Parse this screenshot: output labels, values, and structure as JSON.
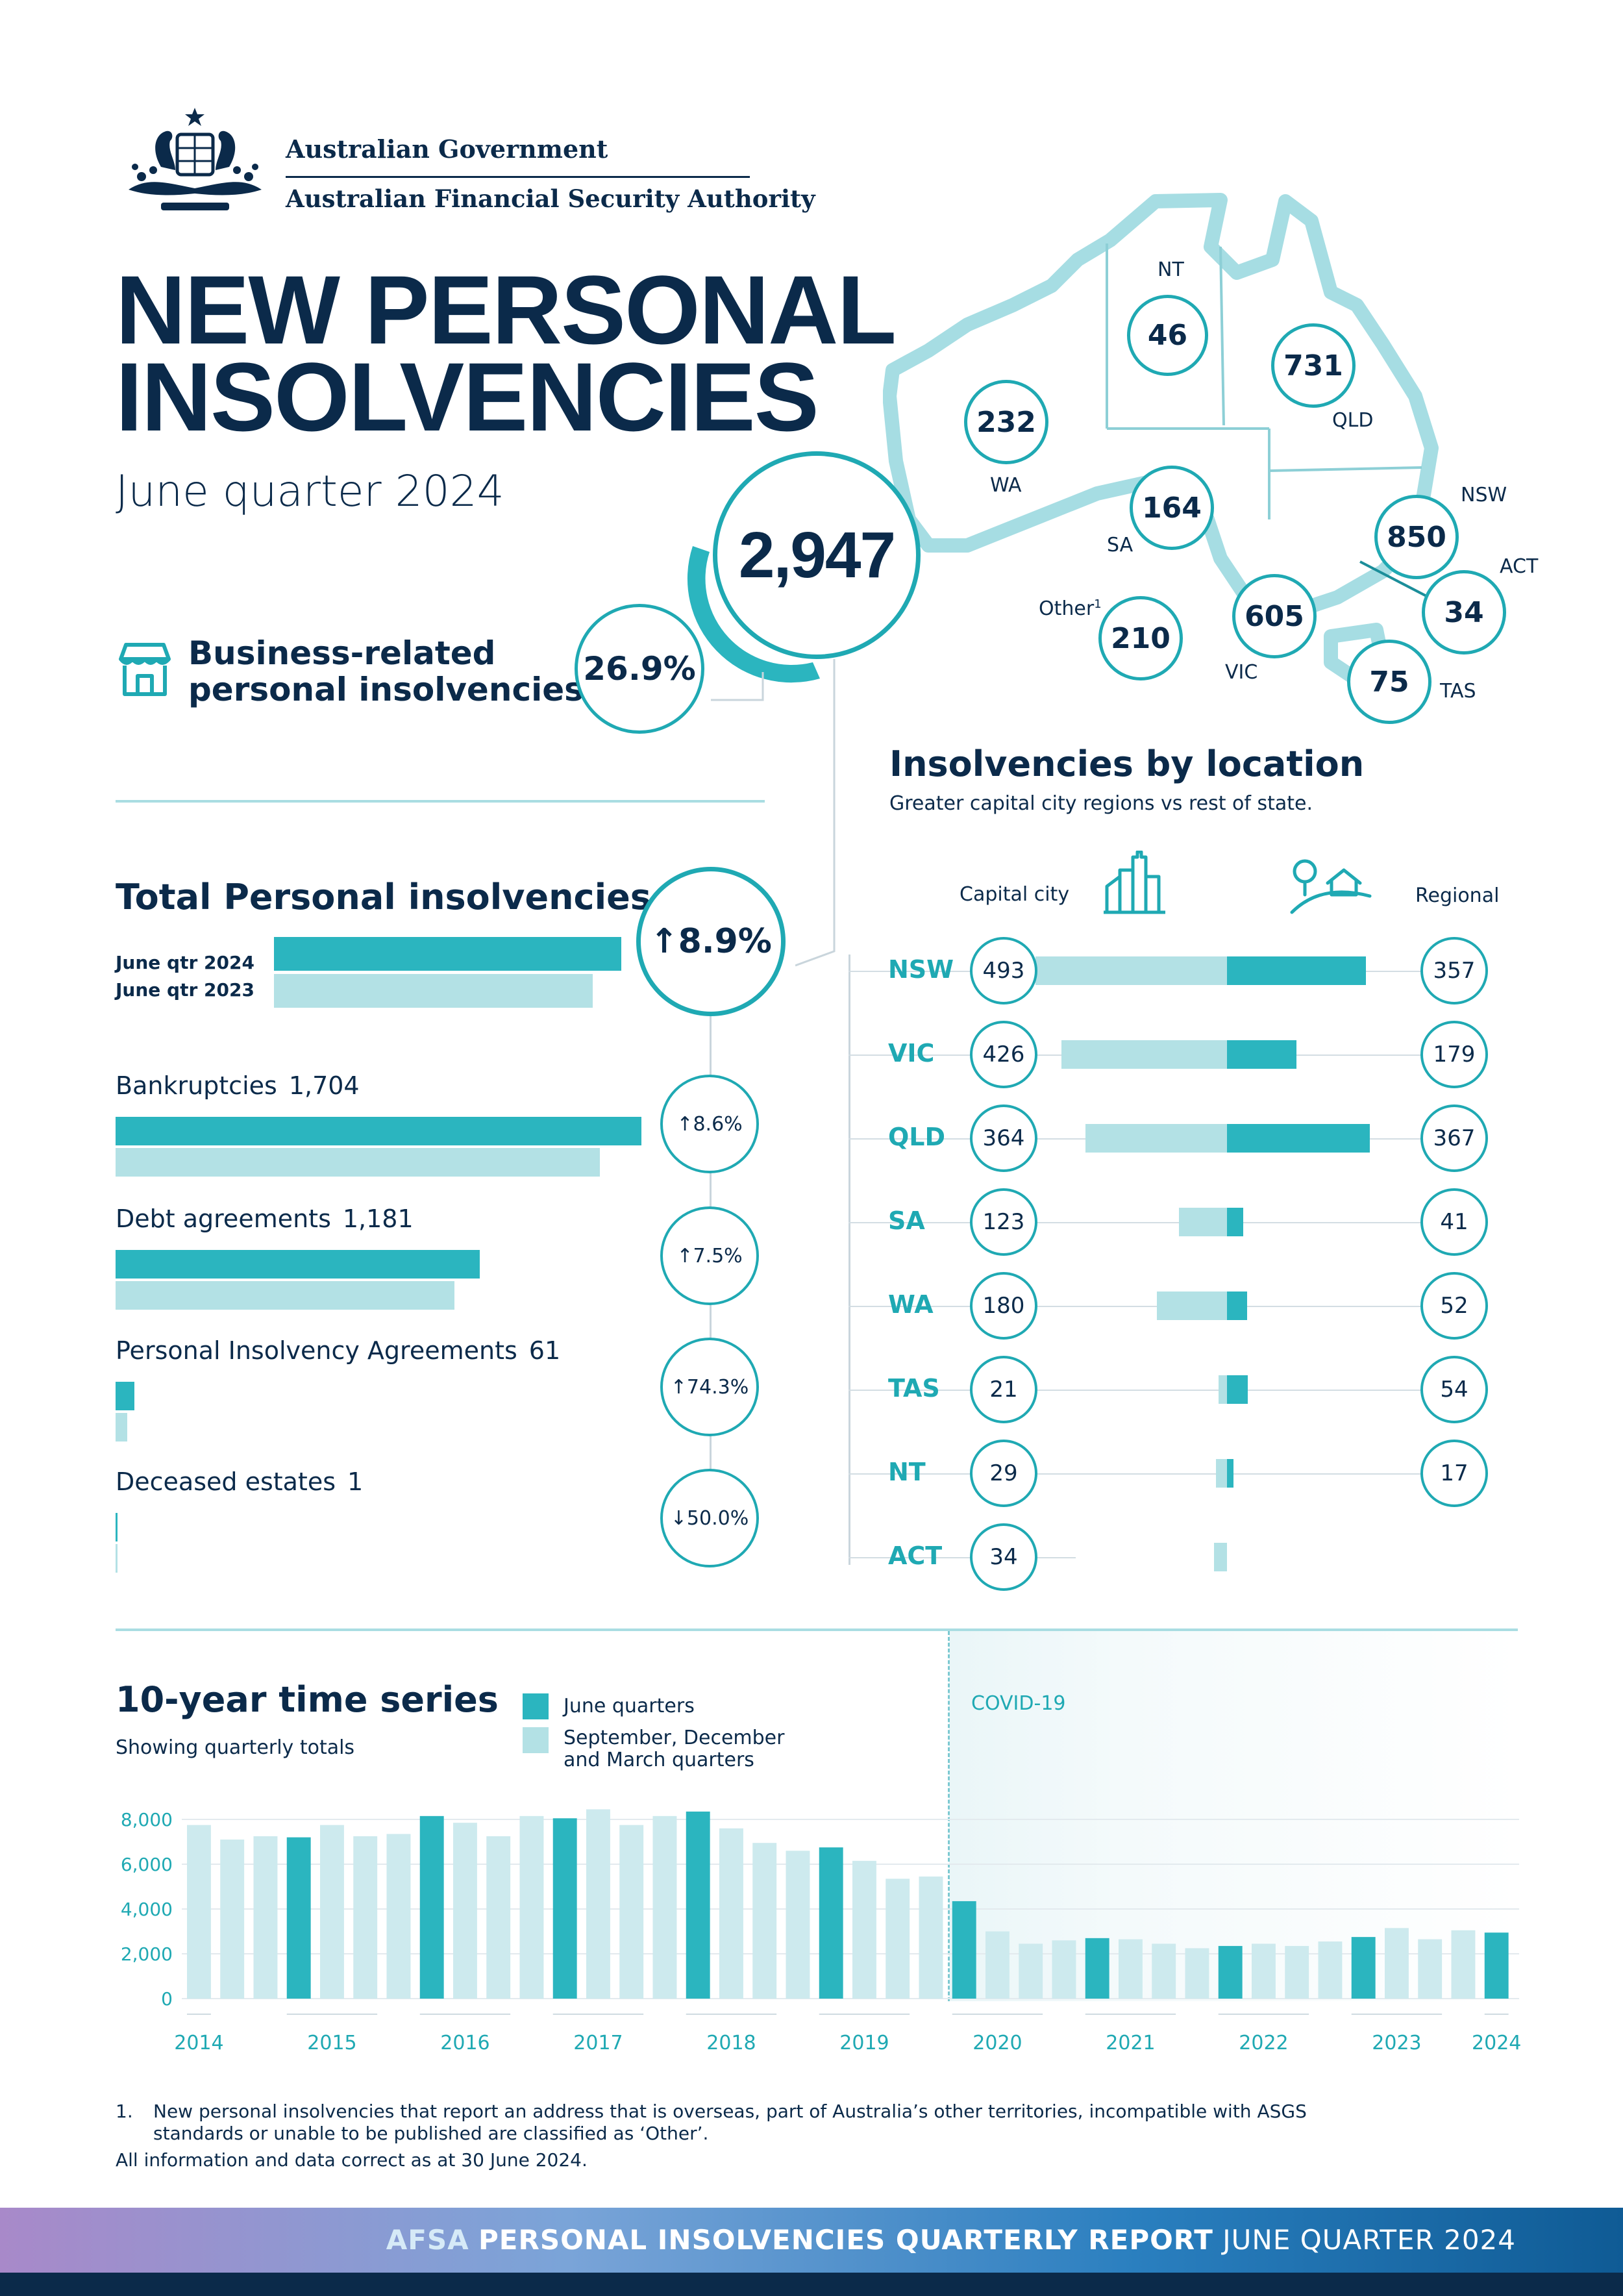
{
  "header": {
    "gov_line1": "Australian Government",
    "gov_line2": "Australian Financial Security Authority",
    "title_line1": "NEW PERSONAL",
    "title_line2": "INSOLVENCIES",
    "subtitle": "June quarter 2024"
  },
  "headline": {
    "total": "2,947",
    "business_label_line1": "Business-related",
    "business_label_line2": "personal insolvencies",
    "business_pct": "26.9%",
    "business_share": 0.269
  },
  "map": {
    "states": [
      {
        "code": "NT",
        "value": "46"
      },
      {
        "code": "QLD",
        "value": "731"
      },
      {
        "code": "WA",
        "value": "232"
      },
      {
        "code": "SA",
        "value": "164"
      },
      {
        "code": "NSW",
        "value": "850"
      },
      {
        "code": "ACT",
        "value": "34"
      },
      {
        "code": "VIC",
        "value": "605"
      },
      {
        "code": "TAS",
        "value": "75"
      }
    ],
    "other_label": "Other",
    "other_sup": "1",
    "other_value": "210"
  },
  "totals": {
    "heading": "Total Personal insolvencies",
    "legend_2024": "June qtr 2024",
    "legend_2023": "June qtr 2023",
    "change": "8.9%",
    "change_dir": "↑",
    "bar_2024": 2947,
    "bar_2023": 2706,
    "categories": [
      {
        "label": "Bankruptcies",
        "value": "1,704",
        "change": "8.6%",
        "dir": "↑",
        "v2024": 1704,
        "v2023": 1569
      },
      {
        "label": "Debt agreements",
        "value": "1,181",
        "change": "7.5%",
        "dir": "↑",
        "v2024": 1181,
        "v2023": 1099
      },
      {
        "label": "Personal Insolvency Agreements",
        "value": "61",
        "change": "74.3%",
        "dir": "↑",
        "v2024": 61,
        "v2023": 35
      },
      {
        "label": "Deceased estates",
        "value": "1",
        "change": "50.0%",
        "dir": "↓",
        "v2024": 1,
        "v2023": 2
      }
    ]
  },
  "location": {
    "heading": "Insolvencies by location",
    "subheading": "Greater capital city regions vs rest of state.",
    "capital_label": "Capital city",
    "regional_label": "Regional",
    "rows": [
      {
        "state": "NSW",
        "capital": "493",
        "regional": "357",
        "cap": 493,
        "reg": 357
      },
      {
        "state": "VIC",
        "capital": "426",
        "regional": "179",
        "cap": 426,
        "reg": 179
      },
      {
        "state": "QLD",
        "capital": "364",
        "regional": "367",
        "cap": 364,
        "reg": 367
      },
      {
        "state": "SA",
        "capital": "123",
        "regional": "41",
        "cap": 123,
        "reg": 41
      },
      {
        "state": "WA",
        "capital": "180",
        "regional": "52",
        "cap": 180,
        "reg": 52
      },
      {
        "state": "TAS",
        "capital": "21",
        "regional": "54",
        "cap": 21,
        "reg": 54
      },
      {
        "state": "NT",
        "capital": "29",
        "regional": "17",
        "cap": 29,
        "reg": 17
      },
      {
        "state": "ACT",
        "capital": "34",
        "regional": "",
        "cap": 34,
        "reg": 0
      }
    ],
    "colors": {
      "capital": "#b3e1e5",
      "regional": "#2bb5bf"
    }
  },
  "timeseries": {
    "heading": "10-year time series",
    "subheading": "Showing quarterly totals",
    "legend_june": "June quarters",
    "legend_other_line1": "September, December",
    "legend_other_line2": "and March quarters",
    "covid_label": "COVID-19",
    "colors": {
      "june": "#2bb5bf",
      "other": "#cdeaee"
    }
  },
  "chart_data": {
    "type": "bar",
    "title": "10-year time series",
    "subtitle": "Showing quarterly totals",
    "ylim": [
      0,
      8000
    ],
    "yticks": [
      "0",
      "2,000",
      "4,000",
      "6,000",
      "8,000"
    ],
    "ytick_values": [
      0,
      2000,
      4000,
      6000,
      8000
    ],
    "year_labels": [
      "2014",
      "2015",
      "2016",
      "2017",
      "2018",
      "2019",
      "2020",
      "2021",
      "2022",
      "2023",
      "2024"
    ],
    "year_start_index": [
      0,
      3,
      7,
      11,
      15,
      19,
      23,
      27,
      31,
      35,
      39
    ],
    "year_end_index": [
      1,
      6,
      10,
      14,
      18,
      22,
      26,
      30,
      34,
      38,
      40
    ],
    "series": [
      {
        "name": "June quarters",
        "is_june": [
          false,
          false,
          false,
          true,
          false,
          false,
          false,
          true,
          false,
          false,
          false,
          true,
          false,
          false,
          false,
          true,
          false,
          false,
          false,
          true,
          false,
          false,
          false,
          true,
          false,
          false,
          false,
          true,
          false,
          false,
          false,
          true,
          false,
          false,
          false,
          true,
          false,
          false,
          false,
          true
        ]
      },
      {
        "name": "September, December and March quarters"
      }
    ],
    "values": [
      7750,
      7100,
      7250,
      7200,
      7750,
      7250,
      7350,
      8150,
      7850,
      7250,
      8150,
      8050,
      8450,
      7750,
      8150,
      8350,
      7600,
      6950,
      6600,
      6750,
      6150,
      5350,
      5450,
      4350,
      3000,
      2450,
      2600,
      2700,
      2650,
      2450,
      2250,
      2350,
      2450,
      2350,
      2550,
      2750,
      3150,
      2650,
      3050,
      2947
    ],
    "covid_start_index": 23,
    "grid": true
  },
  "footnote": {
    "num": "1.",
    "text_line1": "New personal insolvencies that report an address that is overseas, part of Australia’s other territories, incompatible with ASGS",
    "text_line2": "standards or unable to be published are classified as ‘Other’.",
    "note": "All information and data correct as at 30 June 2024."
  },
  "footer": {
    "afsa": "AFSA",
    "report": "PERSONAL INSOLVENCIES QUARTERLY REPORT",
    "period": "JUNE QUARTER 2024"
  }
}
